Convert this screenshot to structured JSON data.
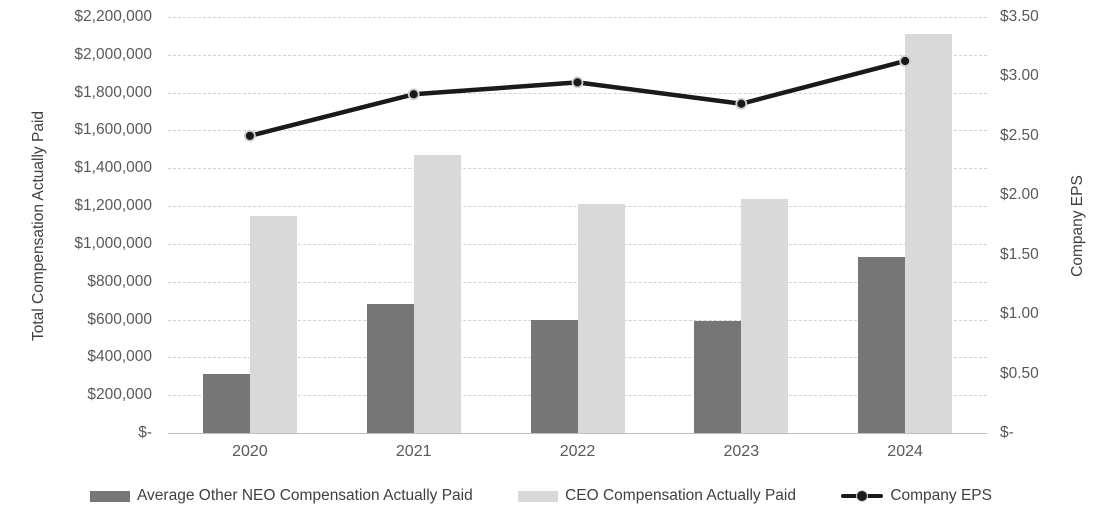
{
  "chart_data": {
    "type": "combo-bar-line",
    "categories": [
      "2020",
      "2021",
      "2022",
      "2023",
      "2024"
    ],
    "series": [
      {
        "name": "Average Other NEO Compensation Actually Paid",
        "type": "bar",
        "axis": "left",
        "color": "#767676",
        "values": [
          310000,
          680000,
          595000,
          590000,
          930000
        ]
      },
      {
        "name": "CEO Compensation Actually Paid",
        "type": "bar",
        "axis": "left",
        "color": "#d9d9d9",
        "values": [
          1150000,
          1470000,
          1210000,
          1235000,
          2110000
        ]
      },
      {
        "name": "Company EPS",
        "type": "line",
        "axis": "right",
        "color": "#1a1a1a",
        "marker": "circle",
        "values": [
          2.5,
          2.85,
          2.95,
          2.77,
          3.13
        ]
      }
    ],
    "left_axis": {
      "title": "Total Compensation Actually Paid",
      "min": 0,
      "max": 2200000,
      "tick_labels": [
        "$2,200,000",
        "$2,000,000",
        "$1,800,000",
        "$1,600,000",
        "$1,400,000",
        "$1,200,000",
        "$1,000,000",
        "$800,000",
        "$600,000",
        "$400,000",
        "$200,000",
        "$-"
      ]
    },
    "right_axis": {
      "title": "Company EPS",
      "min": 0,
      "max": 3.5,
      "tick_labels": [
        "$3.50",
        "$3.00",
        "$2.50",
        "$2.00",
        "$1.50",
        "$1.00",
        "$0.50",
        "$-"
      ]
    },
    "grid": true,
    "legend_position": "bottom",
    "legend": [
      {
        "type": "bar",
        "color": "#767676",
        "label": "Average Other NEO Compensation Actually Paid"
      },
      {
        "type": "bar",
        "color": "#d9d9d9",
        "label": "CEO Compensation Actually Paid"
      },
      {
        "type": "line",
        "color": "#1a1a1a",
        "label": "Company EPS"
      }
    ]
  }
}
